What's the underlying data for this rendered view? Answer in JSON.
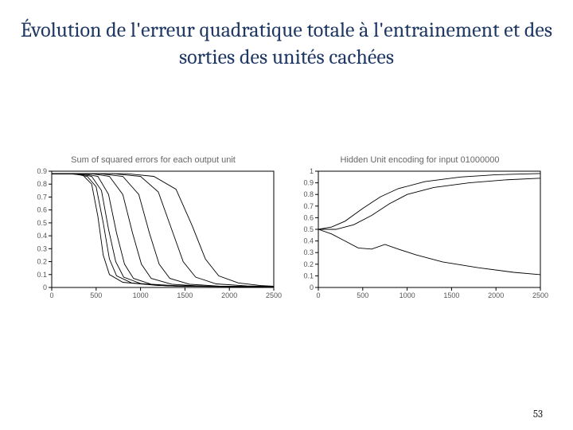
{
  "slide": {
    "title": "Évolution de l'erreur quadratique totale à l'entrainement et des sorties des unités cachées",
    "page_number": "53"
  },
  "chart_left": {
    "type": "line",
    "title": "Sum of squared errors for each output unit",
    "title_fontsize": 11,
    "background_color": "#ffffff",
    "line_color": "#000000",
    "axis_color": "#000000",
    "tick_label_color": "#555555",
    "tick_fontsize": 9,
    "xlim": [
      0,
      2500
    ],
    "ylim": [
      0,
      0.9
    ],
    "xticks": [
      0,
      500,
      1000,
      1500,
      2000,
      2500
    ],
    "yticks": [
      0,
      0.1,
      0.2,
      0.3,
      0.4,
      0.5,
      0.6,
      0.7,
      0.8,
      0.9
    ],
    "curves": [
      [
        [
          0,
          0.88
        ],
        [
          200,
          0.88
        ],
        [
          350,
          0.87
        ],
        [
          450,
          0.8
        ],
        [
          520,
          0.55
        ],
        [
          580,
          0.25
        ],
        [
          650,
          0.1
        ],
        [
          800,
          0.04
        ],
        [
          1200,
          0.015
        ],
        [
          2500,
          0.005
        ]
      ],
      [
        [
          0,
          0.88
        ],
        [
          250,
          0.88
        ],
        [
          400,
          0.86
        ],
        [
          500,
          0.78
        ],
        [
          580,
          0.5
        ],
        [
          650,
          0.22
        ],
        [
          730,
          0.09
        ],
        [
          900,
          0.035
        ],
        [
          1300,
          0.012
        ],
        [
          2500,
          0.005
        ]
      ],
      [
        [
          0,
          0.88
        ],
        [
          300,
          0.88
        ],
        [
          450,
          0.86
        ],
        [
          560,
          0.75
        ],
        [
          640,
          0.45
        ],
        [
          720,
          0.2
        ],
        [
          810,
          0.08
        ],
        [
          1000,
          0.03
        ],
        [
          1400,
          0.01
        ],
        [
          2500,
          0.005
        ]
      ],
      [
        [
          0,
          0.88
        ],
        [
          350,
          0.88
        ],
        [
          520,
          0.86
        ],
        [
          640,
          0.72
        ],
        [
          730,
          0.42
        ],
        [
          820,
          0.18
        ],
        [
          920,
          0.07
        ],
        [
          1120,
          0.025
        ],
        [
          1500,
          0.01
        ],
        [
          2500,
          0.005
        ]
      ],
      [
        [
          0,
          0.88
        ],
        [
          450,
          0.88
        ],
        [
          650,
          0.86
        ],
        [
          800,
          0.72
        ],
        [
          910,
          0.42
        ],
        [
          1010,
          0.18
        ],
        [
          1120,
          0.07
        ],
        [
          1350,
          0.025
        ],
        [
          1700,
          0.01
        ],
        [
          2500,
          0.005
        ]
      ],
      [
        [
          0,
          0.88
        ],
        [
          550,
          0.88
        ],
        [
          800,
          0.86
        ],
        [
          980,
          0.72
        ],
        [
          1100,
          0.42
        ],
        [
          1210,
          0.18
        ],
        [
          1330,
          0.07
        ],
        [
          1550,
          0.025
        ],
        [
          1900,
          0.01
        ],
        [
          2500,
          0.005
        ]
      ],
      [
        [
          0,
          0.88
        ],
        [
          700,
          0.88
        ],
        [
          1000,
          0.86
        ],
        [
          1200,
          0.74
        ],
        [
          1350,
          0.45
        ],
        [
          1480,
          0.2
        ],
        [
          1620,
          0.08
        ],
        [
          1850,
          0.028
        ],
        [
          2200,
          0.012
        ],
        [
          2500,
          0.008
        ]
      ],
      [
        [
          0,
          0.88
        ],
        [
          850,
          0.88
        ],
        [
          1150,
          0.86
        ],
        [
          1400,
          0.76
        ],
        [
          1580,
          0.48
        ],
        [
          1730,
          0.22
        ],
        [
          1880,
          0.09
        ],
        [
          2100,
          0.035
        ],
        [
          2350,
          0.015
        ],
        [
          2500,
          0.01
        ]
      ]
    ]
  },
  "chart_right": {
    "type": "line",
    "title": "Hidden Unit encoding for input 01000000",
    "title_fontsize": 11,
    "background_color": "#ffffff",
    "line_color": "#000000",
    "axis_color": "#000000",
    "tick_label_color": "#555555",
    "tick_fontsize": 9,
    "xlim": [
      0,
      2500
    ],
    "ylim": [
      0,
      1.0
    ],
    "xticks": [
      0,
      500,
      1000,
      1500,
      2000,
      2500
    ],
    "yticks": [
      0,
      0.1,
      0.2,
      0.3,
      0.4,
      0.5,
      0.6,
      0.7,
      0.8,
      0.9,
      1.0
    ],
    "curves": [
      [
        [
          0,
          0.5
        ],
        [
          150,
          0.52
        ],
        [
          300,
          0.57
        ],
        [
          500,
          0.68
        ],
        [
          700,
          0.78
        ],
        [
          900,
          0.85
        ],
        [
          1200,
          0.91
        ],
        [
          1600,
          0.95
        ],
        [
          2000,
          0.97
        ],
        [
          2500,
          0.98
        ]
      ],
      [
        [
          0,
          0.5
        ],
        [
          200,
          0.5
        ],
        [
          400,
          0.54
        ],
        [
          600,
          0.62
        ],
        [
          800,
          0.72
        ],
        [
          1000,
          0.8
        ],
        [
          1300,
          0.86
        ],
        [
          1700,
          0.9
        ],
        [
          2100,
          0.925
        ],
        [
          2500,
          0.94
        ]
      ],
      [
        [
          0,
          0.5
        ],
        [
          150,
          0.46
        ],
        [
          300,
          0.4
        ],
        [
          450,
          0.34
        ],
        [
          600,
          0.33
        ],
        [
          750,
          0.37
        ],
        [
          900,
          0.33
        ],
        [
          1100,
          0.28
        ],
        [
          1400,
          0.22
        ],
        [
          1800,
          0.17
        ],
        [
          2200,
          0.13
        ],
        [
          2500,
          0.11
        ]
      ]
    ]
  }
}
